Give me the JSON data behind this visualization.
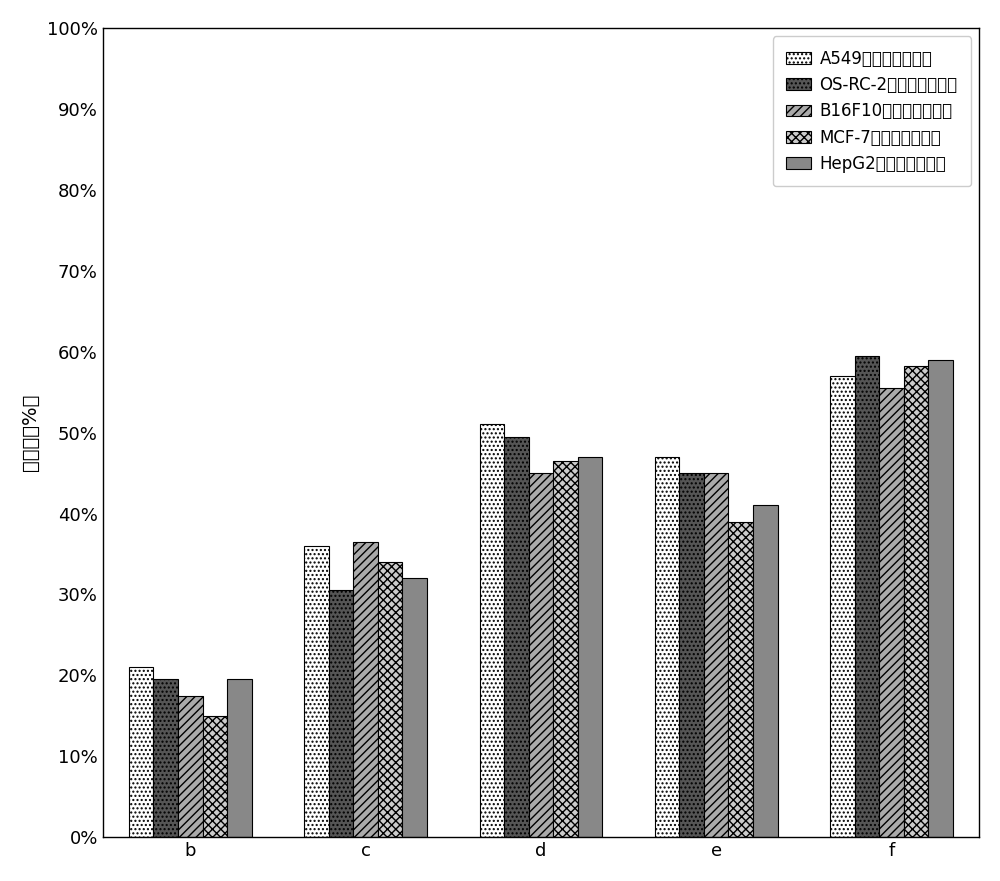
{
  "categories": [
    "b",
    "c",
    "d",
    "e",
    "f"
  ],
  "series": [
    {
      "label": "A549荷瘀小鼠抑瘀率",
      "values": [
        0.21,
        0.36,
        0.51,
        0.47,
        0.57
      ],
      "hatch": "....",
      "facecolor": "#ffffff",
      "edgecolor": "#000000"
    },
    {
      "label": "OS-RC-2荷瘀小鼠抑瘀率",
      "values": [
        0.195,
        0.305,
        0.495,
        0.45,
        0.595
      ],
      "hatch": "....",
      "facecolor": "#555555",
      "edgecolor": "#000000"
    },
    {
      "label": "B16F10荷瘀小鼠抑瘀率",
      "values": [
        0.175,
        0.365,
        0.45,
        0.45,
        0.555
      ],
      "hatch": "////",
      "facecolor": "#aaaaaa",
      "edgecolor": "#000000"
    },
    {
      "label": "MCF-7荷瘀小鼠抑瘀率",
      "values": [
        0.15,
        0.34,
        0.465,
        0.39,
        0.582
      ],
      "hatch": "xxxx",
      "facecolor": "#cccccc",
      "edgecolor": "#000000"
    },
    {
      "label": "HepG2荷瘀小鼠抑瘀率",
      "values": [
        0.195,
        0.32,
        0.47,
        0.41,
        0.59
      ],
      "hatch": "####",
      "facecolor": "#888888",
      "edgecolor": "#000000"
    }
  ],
  "ylabel": "抑瘀率（%）",
  "ylim": [
    0,
    1.0
  ],
  "yticks": [
    0.0,
    0.1,
    0.2,
    0.3,
    0.4,
    0.5,
    0.6,
    0.7,
    0.8,
    0.9,
    1.0
  ],
  "ytick_labels": [
    "0%",
    "10%",
    "20%",
    "30%",
    "40%",
    "50%",
    "60%",
    "70%",
    "80%",
    "90%",
    "100%"
  ],
  "background_color": "#ffffff",
  "figure_facecolor": "#ffffff",
  "bar_width": 0.14,
  "legend_fontsize": 12,
  "ylabel_fontsize": 14,
  "tick_fontsize": 13
}
